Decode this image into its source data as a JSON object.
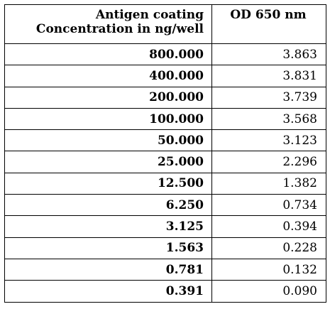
{
  "table": {
    "header": {
      "col1_line1": "Antigen coating",
      "col1_line2": "Concentration in ng/well",
      "col2": "OD 650 nm"
    },
    "rows": [
      {
        "concentration": "800.000",
        "od": "3.863"
      },
      {
        "concentration": "400.000",
        "od": "3.831"
      },
      {
        "concentration": "200.000",
        "od": "3.739"
      },
      {
        "concentration": "100.000",
        "od": "3.568"
      },
      {
        "concentration": "50.000",
        "od": "3.123"
      },
      {
        "concentration": "25.000",
        "od": "2.296"
      },
      {
        "concentration": "12.500",
        "od": "1.382"
      },
      {
        "concentration": "6.250",
        "od": "0.734"
      },
      {
        "concentration": "3.125",
        "od": "0.394"
      },
      {
        "concentration": "1.563",
        "od": "0.228"
      },
      {
        "concentration": "0.781",
        "od": "0.132"
      },
      {
        "concentration": "0.391",
        "od": "0.090"
      }
    ]
  }
}
